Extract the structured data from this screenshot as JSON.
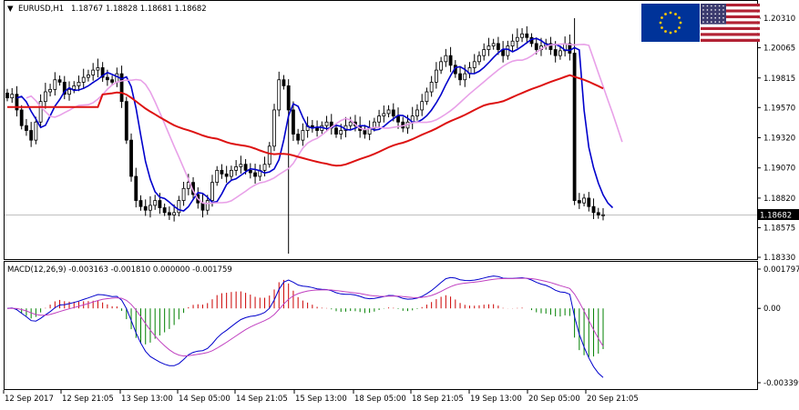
{
  "header": {
    "arrow": "▼",
    "symbol": "EURUSD,H1",
    "prices": "1.18767 1.18828 1.18681 1.18682"
  },
  "macd_header": "MACD(12,26,9) -0.003163 -0.001810 0.000000 -0.001759",
  "flags": [
    {
      "name": "eu-flag",
      "bg": "#003399",
      "star": "#ffcc00"
    },
    {
      "name": "us-flag",
      "stripe": "#b22234",
      "canton": "#3c3b6e"
    }
  ],
  "colors": {
    "candles": "#000000",
    "ma_fast": "#0000cc",
    "ma_mid": "#e8a0e8",
    "ma_slow": "#dd1111",
    "hist_pos": "#cc0000",
    "hist_neg": "#008000",
    "macd_line": "#0000cc",
    "signal_line": "#c040c0",
    "price_label_bg": "#000000"
  },
  "chart_data": [
    {
      "type": "candlestick",
      "title": "EURUSD,H1",
      "y_ticks": [
        "1.20310",
        "1.20065",
        "1.19815",
        "1.19570",
        "1.19320",
        "1.19070",
        "1.18820",
        "1.18575",
        "1.18330"
      ],
      "y_tick_values": [
        1.2031,
        1.20065,
        1.19815,
        1.1957,
        1.1932,
        1.1907,
        1.1882,
        1.18575,
        1.1833
      ],
      "ylim": [
        1.1833,
        1.2031
      ],
      "current_price": "1.18682",
      "current_price_value": 1.18682,
      "x_ticks": [
        "12 Sep 2017",
        "12 Sep 21:05",
        "13 Sep 13:00",
        "14 Sep 05:00",
        "14 Sep 21:05",
        "15 Sep 13:00",
        "18 Sep 05:00",
        "18 Sep 21:05",
        "19 Sep 13:00",
        "20 Sep 05:00",
        "20 Sep 21:05"
      ],
      "close_series": [
        1.1965,
        1.1968,
        1.1955,
        1.1942,
        1.1938,
        1.193,
        1.1945,
        1.1962,
        1.197,
        1.1972,
        1.198,
        1.1978,
        1.1968,
        1.1972,
        1.1975,
        1.1978,
        1.1982,
        1.1984,
        1.1988,
        1.199,
        1.1982,
        1.198,
        1.1978,
        1.1985,
        1.1962,
        1.193,
        1.19,
        1.188,
        1.1875,
        1.1872,
        1.1876,
        1.188,
        1.1874,
        1.187,
        1.1868,
        1.187,
        1.188,
        1.189,
        1.1895,
        1.1885,
        1.1878,
        1.1872,
        1.188,
        1.1895,
        1.1905,
        1.1902,
        1.19,
        1.1905,
        1.1908,
        1.191,
        1.1905,
        1.1903,
        1.19,
        1.1905,
        1.191,
        1.1925,
        1.1955,
        1.198,
        1.1975,
        1.1955,
        1.1935,
        1.193,
        1.1938,
        1.1942,
        1.194,
        1.1938,
        1.1942,
        1.1945,
        1.194,
        1.1935,
        1.1938,
        1.1942,
        1.1945,
        1.1942,
        1.1938,
        1.1935,
        1.194,
        1.1945,
        1.195,
        1.1952,
        1.1955,
        1.195,
        1.1945,
        1.194,
        1.1945,
        1.195,
        1.1955,
        1.1962,
        1.197,
        1.1978,
        1.1988,
        1.1995,
        1.2,
        1.1992,
        1.1985,
        1.198,
        1.1985,
        1.199,
        1.1995,
        1.2,
        1.2005,
        1.2008,
        1.201,
        1.2005,
        1.2,
        1.2008,
        1.2012,
        1.2015,
        1.2018,
        1.2015,
        1.201,
        1.2005,
        1.2008,
        1.201,
        1.2005,
        1.2,
        1.2004,
        1.201,
        1.2002,
        1.188,
        1.1878,
        1.1882,
        1.1875,
        1.187,
        1.1868,
        1.18682
      ],
      "series": [
        {
          "name": "",
          "color_key": "ma_fast"
        },
        {
          "name": "",
          "color_key": "ma_mid"
        },
        {
          "name": "",
          "color_key": "ma_slow"
        }
      ]
    },
    {
      "type": "bar",
      "title": "MACD(12,26,9)",
      "y_ticks": [
        "0.001797",
        "0.00",
        "-0.003399"
      ],
      "y_tick_values": [
        0.001797,
        0.0,
        -0.003399
      ],
      "ylim": [
        -0.003399,
        0.001797
      ],
      "values": {
        "macd": -0.003163,
        "signal": -0.00181,
        "zero": 0.0,
        "histogram": -0.001759
      }
    }
  ]
}
